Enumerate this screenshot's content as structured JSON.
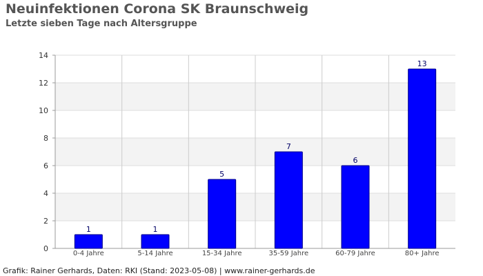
{
  "chart_data": {
    "type": "bar",
    "title": "Neuinfektionen Corona SK Braunschweig",
    "subtitle": "Letzte sieben Tage nach Altersgruppe",
    "categories": [
      "0-4 Jahre",
      "5-14 Jahre",
      "15-34 Jahre",
      "35-59 Jahre",
      "60-79 Jahre",
      "80+ Jahre"
    ],
    "values": [
      1,
      1,
      5,
      7,
      6,
      13
    ],
    "data_labels": [
      "1",
      "1",
      "5",
      "7",
      "6",
      "13"
    ],
    "ylim": [
      0,
      14
    ],
    "yticks": [
      0,
      2,
      4,
      6,
      8,
      10,
      12,
      14
    ],
    "xlabel": "",
    "ylabel": "",
    "grid": true,
    "bar_color": "#0000ff",
    "band_color": "#f3f3f3"
  },
  "footer": "Grafik: Rainer Gerhards, Daten: RKI (Stand: 2023-05-08) | www.rainer-gerhards.de"
}
